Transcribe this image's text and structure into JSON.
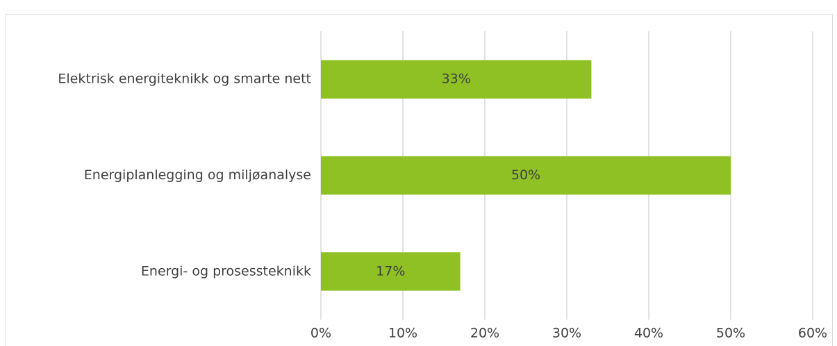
{
  "chart_data": {
    "type": "bar",
    "orientation": "horizontal",
    "categories": [
      "Elektrisk energiteknikk og smarte nett",
      "Energiplanlegging og miljøanalyse",
      "Energi- og prosessteknikk"
    ],
    "values": [
      33,
      50,
      17
    ],
    "value_labels": [
      "33%",
      "50%",
      "17%"
    ],
    "color": "#8fc125",
    "xlim": [
      0,
      60
    ],
    "xticks": [
      {
        "value": 0,
        "label": "0%"
      },
      {
        "value": 10,
        "label": "10%"
      },
      {
        "value": 20,
        "label": "20%"
      },
      {
        "value": 30,
        "label": "30%"
      },
      {
        "value": 40,
        "label": "40%"
      },
      {
        "value": 50,
        "label": "50%"
      },
      {
        "value": 60,
        "label": "60%"
      }
    ],
    "grid": true
  }
}
